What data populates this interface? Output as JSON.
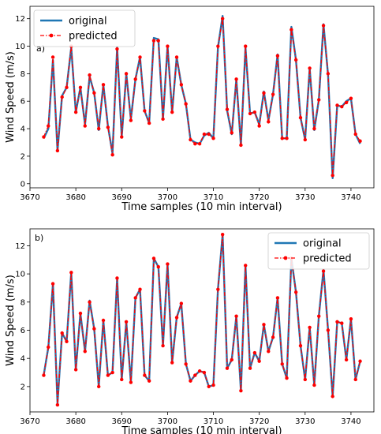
{
  "chart_data": [
    {
      "type": "line",
      "panel_label": "a)",
      "xlabel": "Time samples (10 min interval)",
      "ylabel": "Wind Speed (m/s)",
      "xlim": [
        3670,
        3745
      ],
      "ylim": [
        -0.3,
        12.9
      ],
      "xticks": [
        3670,
        3680,
        3690,
        3700,
        3710,
        3720,
        3730,
        3740
      ],
      "yticks": [
        0,
        2,
        4,
        6,
        8,
        10,
        12
      ],
      "grid": false,
      "legend_position": "top-left",
      "x_start": 3673,
      "series": [
        {
          "name": "original",
          "color": "#1f77b4",
          "style": "solid",
          "values": [
            3.3,
            4.0,
            9.0,
            2.4,
            6.4,
            7.0,
            9.9,
            5.2,
            7.0,
            4.3,
            7.8,
            6.6,
            3.9,
            7.2,
            4.2,
            2.2,
            9.9,
            3.4,
            8.0,
            4.7,
            7.6,
            9.2,
            5.3,
            4.4,
            10.6,
            10.5,
            4.7,
            10.0,
            5.2,
            9.2,
            7.2,
            5.8,
            3.2,
            3.0,
            2.9,
            3.5,
            3.7,
            3.3,
            9.9,
            12.2,
            5.3,
            3.6,
            7.6,
            2.8,
            9.9,
            5.1,
            5.2,
            4.3,
            6.7,
            4.6,
            6.5,
            9.4,
            3.3,
            3.3,
            11.4,
            9.0,
            4.8,
            3.2,
            8.4,
            3.9,
            6.1,
            11.6,
            7.9,
            0.4,
            5.7,
            5.6,
            6.0,
            6.2,
            3.6,
            2.9
          ]
        },
        {
          "name": "predicted",
          "color": "#ff0000",
          "style": "dashdot",
          "marker": "circle",
          "values": [
            3.4,
            4.2,
            9.2,
            2.4,
            6.3,
            7.0,
            10.0,
            5.2,
            7.0,
            4.2,
            7.9,
            6.6,
            4.0,
            7.2,
            4.1,
            2.1,
            9.8,
            3.4,
            8.0,
            4.6,
            7.6,
            9.2,
            5.3,
            4.4,
            10.4,
            10.4,
            4.7,
            10.0,
            5.2,
            9.2,
            7.2,
            5.8,
            3.2,
            2.9,
            2.9,
            3.6,
            3.6,
            3.3,
            10.0,
            12.0,
            5.4,
            3.7,
            7.6,
            2.8,
            10.0,
            5.1,
            5.2,
            4.2,
            6.6,
            4.5,
            6.5,
            9.3,
            3.3,
            3.3,
            11.2,
            9.0,
            4.8,
            3.2,
            8.4,
            4.0,
            6.1,
            11.5,
            8.0,
            0.6,
            5.7,
            5.6,
            5.9,
            6.2,
            3.6,
            3.1
          ]
        }
      ]
    },
    {
      "type": "line",
      "panel_label": "b)",
      "xlabel": "Time samples (10 min interval)",
      "ylabel": "Wind Speed (m/s)",
      "xlim": [
        3670,
        3745
      ],
      "ylim": [
        0.2,
        13.2
      ],
      "xticks": [
        3670,
        3680,
        3690,
        3700,
        3710,
        3720,
        3730,
        3740
      ],
      "yticks": [
        2,
        4,
        6,
        8,
        10,
        12
      ],
      "grid": false,
      "legend_position": "top-right",
      "x_start": 3673,
      "series": [
        {
          "name": "original",
          "color": "#1f77b4",
          "style": "solid",
          "values": [
            2.8,
            4.8,
            9.3,
            0.8,
            5.8,
            5.2,
            10.1,
            3.2,
            7.2,
            4.5,
            8.1,
            6.1,
            2.0,
            6.7,
            2.8,
            3.0,
            9.7,
            2.5,
            6.6,
            2.3,
            8.3,
            8.9,
            2.8,
            2.4,
            11.1,
            10.5,
            4.9,
            10.7,
            3.7,
            6.9,
            7.9,
            3.6,
            2.4,
            2.8,
            3.1,
            3.0,
            2.0,
            2.1,
            8.9,
            12.8,
            3.3,
            3.9,
            7.0,
            1.7,
            10.6,
            3.3,
            4.4,
            3.8,
            6.4,
            4.5,
            5.5,
            8.3,
            3.6,
            2.6,
            11.1,
            8.7,
            4.9,
            2.5,
            6.2,
            2.1,
            7.0,
            10.3,
            6.0,
            1.3,
            6.6,
            6.5,
            3.9,
            6.8,
            2.5,
            3.8
          ]
        },
        {
          "name": "predicted",
          "color": "#ff0000",
          "style": "dashdot",
          "marker": "circle",
          "values": [
            2.8,
            4.8,
            9.3,
            0.7,
            5.8,
            5.2,
            10.1,
            3.2,
            7.2,
            4.5,
            8.0,
            6.1,
            2.0,
            6.7,
            2.8,
            3.0,
            9.7,
            2.5,
            6.6,
            2.3,
            8.3,
            8.9,
            2.8,
            2.4,
            11.1,
            10.5,
            4.9,
            10.7,
            3.7,
            6.9,
            7.9,
            3.6,
            2.4,
            2.8,
            3.1,
            3.0,
            2.0,
            2.1,
            8.9,
            12.8,
            3.3,
            3.9,
            7.0,
            1.7,
            10.6,
            3.3,
            4.4,
            3.8,
            6.4,
            4.5,
            5.5,
            8.3,
            3.6,
            2.6,
            11.1,
            8.7,
            4.9,
            2.5,
            6.2,
            2.1,
            7.0,
            10.2,
            6.0,
            1.3,
            6.6,
            6.5,
            3.9,
            6.8,
            2.5,
            3.8
          ]
        }
      ]
    }
  ]
}
